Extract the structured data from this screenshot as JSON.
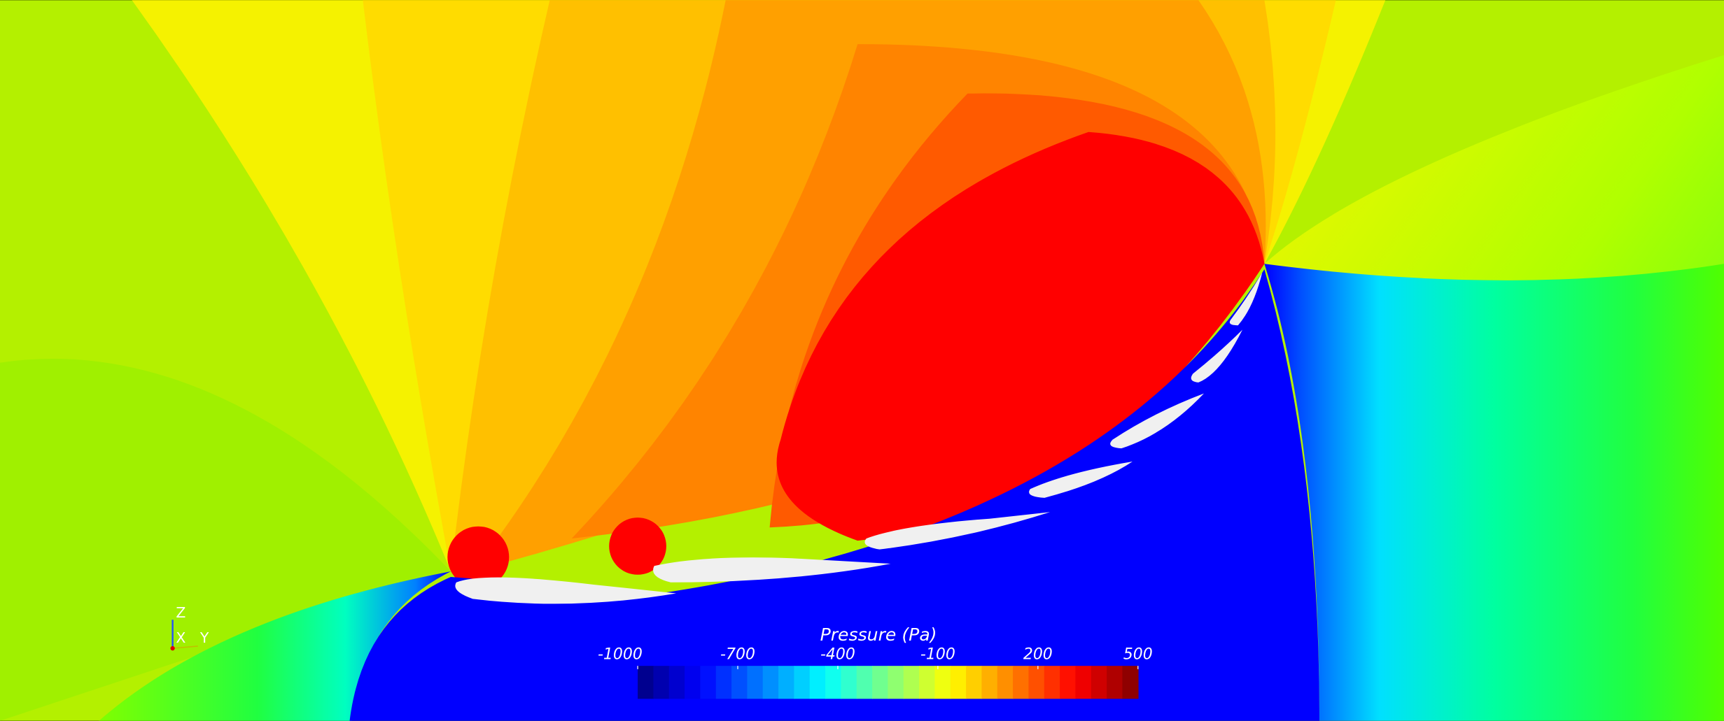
{
  "colorbar": {
    "title": "Pressure (Pa)",
    "range": [
      -1000,
      500
    ],
    "ticks": [
      -1000,
      -700,
      -400,
      -100,
      200,
      500
    ]
  },
  "axes_triad": {
    "z": "Z",
    "x": "X",
    "y": "Y"
  }
}
